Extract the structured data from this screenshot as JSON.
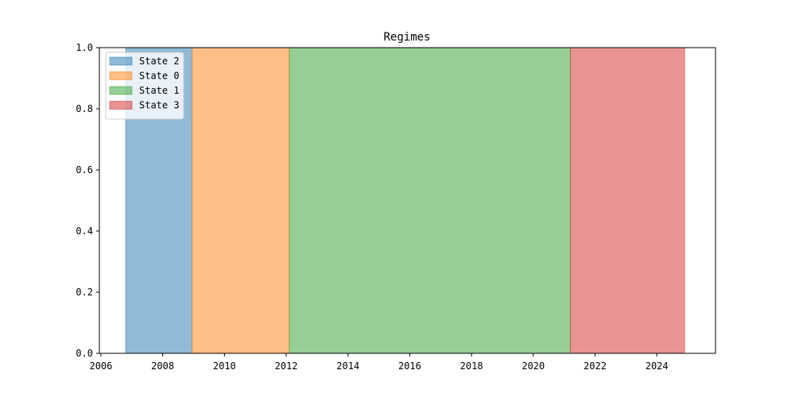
{
  "chart_data": {
    "type": "area",
    "title": "Regimes",
    "xlabel": "",
    "ylabel": "",
    "xlim": [
      2005.95,
      2025.9
    ],
    "ylim": [
      0,
      1
    ],
    "xticks": [
      2006,
      2008,
      2010,
      2012,
      2014,
      2016,
      2018,
      2020,
      2022,
      2024
    ],
    "yticks": [
      0.0,
      0.2,
      0.4,
      0.6,
      0.8,
      1.0
    ],
    "xtick_labels": [
      "2006",
      "2008",
      "2010",
      "2012",
      "2014",
      "2016",
      "2018",
      "2020",
      "2022",
      "2024"
    ],
    "ytick_labels": [
      "0.0",
      "0.2",
      "0.4",
      "0.6",
      "0.8",
      "1.0"
    ],
    "grid": false,
    "legend_position": "top-left",
    "series": [
      {
        "name": "State 2",
        "color": "#1f77b4",
        "start": 2006.8,
        "end": 2008.95,
        "value": 1.0
      },
      {
        "name": "State 0",
        "color": "#ff7f0e",
        "start": 2008.95,
        "end": 2012.1,
        "value": 1.0
      },
      {
        "name": "State 1",
        "color": "#2ca02c",
        "start": 2012.1,
        "end": 2021.2,
        "value": 1.0
      },
      {
        "name": "State 3",
        "color": "#d62728",
        "start": 2021.2,
        "end": 2024.9,
        "value": 1.0
      }
    ]
  }
}
